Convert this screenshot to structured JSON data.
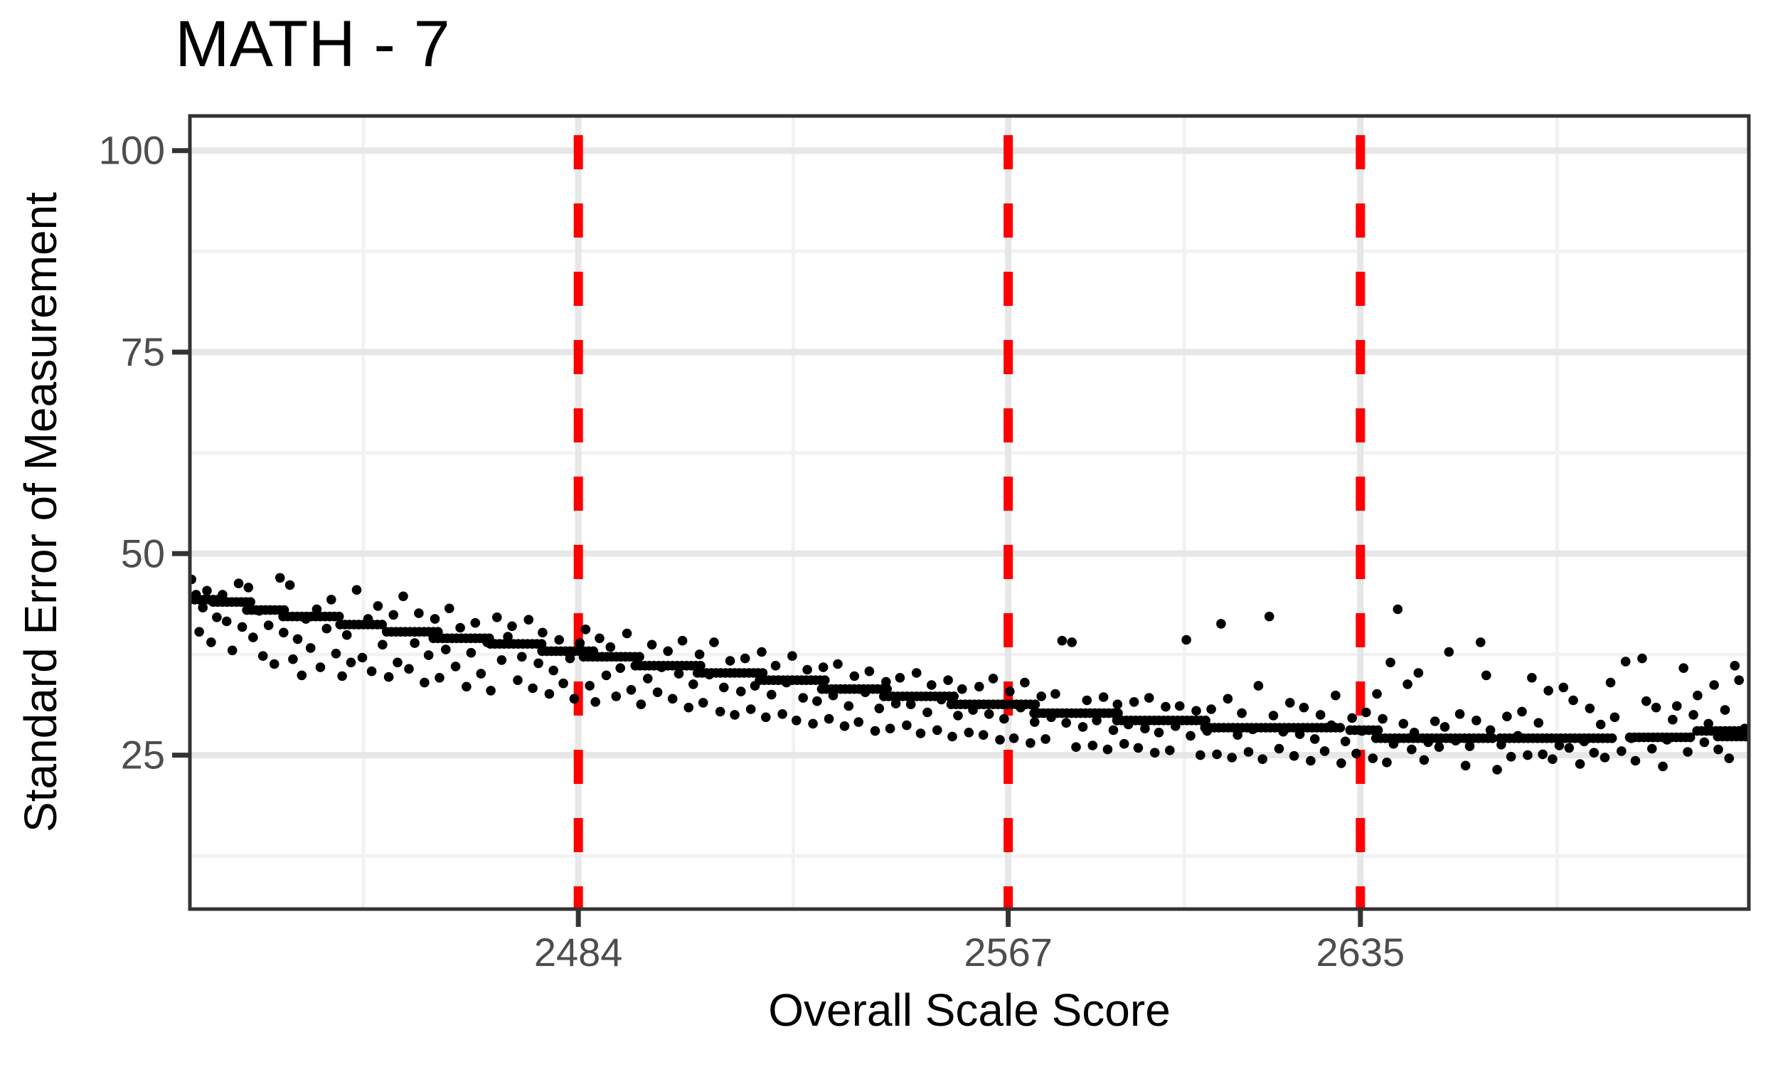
{
  "chart_data": {
    "type": "scatter",
    "title": "MATH - 7",
    "xlabel": "Overall Scale Score",
    "ylabel": "Standard Error of Measurement",
    "xlim": [
      2409,
      2710
    ],
    "ylim": [
      5.9,
      104.3
    ],
    "x_ticks": [
      2484,
      2567,
      2635
    ],
    "x_minor_breaks": [
      2442.5,
      2525.5,
      2601,
      2673
    ],
    "y_ticks": [
      25,
      50,
      75,
      100
    ],
    "y_minor_breaks": [
      12.5,
      37.5,
      62.5,
      87.5
    ],
    "grid": "major+minor",
    "legend": "none",
    "cut_lines": {
      "x": [
        2484,
        2567,
        2635
      ],
      "color": "#FF0000",
      "linetype": "dashed"
    },
    "point_color": "#000000",
    "run_step": 0.9,
    "dense_runs": [
      [
        2409,
        2415,
        44.3
      ],
      [
        2413.5,
        2421,
        44.0
      ],
      [
        2420,
        2428,
        43.0
      ],
      [
        2427,
        2438,
        42.2
      ],
      [
        2438,
        2447,
        41.2
      ],
      [
        2447,
        2457,
        40.3
      ],
      [
        2456,
        2467,
        39.5
      ],
      [
        2467,
        2477,
        38.8
      ],
      [
        2477,
        2487,
        37.9
      ],
      [
        2485,
        2496,
        37.2
      ],
      [
        2495,
        2508,
        36.1
      ],
      [
        2507,
        2520,
        35.2
      ],
      [
        2519,
        2532,
        34.3
      ],
      [
        2531,
        2544,
        33.2
      ],
      [
        2543,
        2557,
        32.3
      ],
      [
        2556,
        2573,
        31.3
      ],
      [
        2572,
        2589,
        30.2
      ],
      [
        2588,
        2606,
        29.3
      ],
      [
        2605,
        2632,
        28.4
      ],
      [
        2633,
        2638.5,
        28.1
      ],
      [
        2638,
        2661,
        27.1
      ],
      [
        2662,
        2684,
        27.1
      ],
      [
        2687,
        2699,
        27.2
      ],
      [
        2700,
        2710,
        28.0
      ],
      [
        2704,
        2710,
        27.3
      ]
    ],
    "points": [
      [
        2409.3,
        46.8
      ],
      [
        2410.2,
        44.9
      ],
      [
        2410.8,
        40.3
      ],
      [
        2411.5,
        43.3
      ],
      [
        2412.3,
        45.4
      ],
      [
        2413.1,
        39.0
      ],
      [
        2414.2,
        42.1
      ],
      [
        2415.3,
        44.9
      ],
      [
        2416.1,
        41.6
      ],
      [
        2417.2,
        38.0
      ],
      [
        2418.4,
        46.3
      ],
      [
        2419.1,
        40.9
      ],
      [
        2420.3,
        45.8
      ],
      [
        2421.2,
        39.6
      ],
      [
        2422.4,
        42.9
      ],
      [
        2423.1,
        37.3
      ],
      [
        2424.2,
        41.1
      ],
      [
        2425.3,
        36.3
      ],
      [
        2426.4,
        47.0
      ],
      [
        2427.1,
        40.2
      ],
      [
        2428.3,
        46.1
      ],
      [
        2428.9,
        36.9
      ],
      [
        2429.8,
        39.4
      ],
      [
        2430.6,
        34.9
      ],
      [
        2431.4,
        41.9
      ],
      [
        2432.3,
        38.3
      ],
      [
        2433.5,
        43.1
      ],
      [
        2434.2,
        35.9
      ],
      [
        2435.4,
        40.7
      ],
      [
        2436.3,
        44.3
      ],
      [
        2437.2,
        37.6
      ],
      [
        2438.4,
        34.8
      ],
      [
        2439.3,
        39.9
      ],
      [
        2440.1,
        36.5
      ],
      [
        2441.2,
        45.5
      ],
      [
        2442.3,
        37.1
      ],
      [
        2443.4,
        41.9
      ],
      [
        2444.1,
        35.4
      ],
      [
        2445.3,
        43.5
      ],
      [
        2446.2,
        38.7
      ],
      [
        2447.4,
        34.7
      ],
      [
        2448.3,
        42.4
      ],
      [
        2449.1,
        36.5
      ],
      [
        2450.2,
        44.7
      ],
      [
        2451.3,
        35.7
      ],
      [
        2452.4,
        38.9
      ],
      [
        2453.2,
        42.6
      ],
      [
        2454.3,
        34.0
      ],
      [
        2455.1,
        37.4
      ],
      [
        2456.3,
        41.9
      ],
      [
        2457.2,
        34.6
      ],
      [
        2458.4,
        38.1
      ],
      [
        2459.1,
        43.2
      ],
      [
        2460.3,
        36.0
      ],
      [
        2461.2,
        40.8
      ],
      [
        2462.4,
        33.5
      ],
      [
        2463.3,
        37.7
      ],
      [
        2464.1,
        41.4
      ],
      [
        2465.2,
        35.1
      ],
      [
        2466.4,
        39.0
      ],
      [
        2467.1,
        33.0
      ],
      [
        2468.3,
        42.1
      ],
      [
        2469.2,
        36.8
      ],
      [
        2470.4,
        39.7
      ],
      [
        2471.2,
        41.0
      ],
      [
        2472.3,
        34.3
      ],
      [
        2473.1,
        37.2
      ],
      [
        2474.4,
        41.8
      ],
      [
        2475.2,
        33.3
      ],
      [
        2476.3,
        36.4
      ],
      [
        2477.1,
        40.2
      ],
      [
        2478.4,
        32.6
      ],
      [
        2479.2,
        35.5
      ],
      [
        2480.3,
        39.3
      ],
      [
        2481.1,
        33.9
      ],
      [
        2482.4,
        37.0
      ],
      [
        2483.2,
        32.0
      ],
      [
        2484.3,
        38.9
      ],
      [
        2485.4,
        40.6
      ],
      [
        2486.2,
        33.6
      ],
      [
        2487.3,
        31.6
      ],
      [
        2488.1,
        39.5
      ],
      [
        2489.4,
        34.9
      ],
      [
        2490.2,
        38.4
      ],
      [
        2491.3,
        32.3
      ],
      [
        2492.1,
        35.8
      ],
      [
        2493.4,
        40.1
      ],
      [
        2494.2,
        33.1
      ],
      [
        2495.3,
        36.9
      ],
      [
        2496.1,
        31.3
      ],
      [
        2497.4,
        34.5
      ],
      [
        2498.2,
        38.7
      ],
      [
        2499.3,
        32.8
      ],
      [
        2500.1,
        35.9
      ],
      [
        2501.3,
        37.9
      ],
      [
        2502.2,
        32.0
      ],
      [
        2503.4,
        35.1
      ],
      [
        2504.1,
        39.2
      ],
      [
        2505.3,
        30.9
      ],
      [
        2506.2,
        33.8
      ],
      [
        2507.4,
        37.5
      ],
      [
        2508.1,
        31.5
      ],
      [
        2509.3,
        35.0
      ],
      [
        2510.2,
        39.0
      ],
      [
        2511.4,
        30.4
      ],
      [
        2512.1,
        33.4
      ],
      [
        2513.3,
        36.7
      ],
      [
        2514.2,
        30.0
      ],
      [
        2515.4,
        32.9
      ],
      [
        2516.2,
        37.0
      ],
      [
        2517.3,
        30.7
      ],
      [
        2518.1,
        33.6
      ],
      [
        2519.4,
        37.8
      ],
      [
        2520.2,
        29.7
      ],
      [
        2521.3,
        32.5
      ],
      [
        2522.1,
        36.1
      ],
      [
        2523.4,
        30.1
      ],
      [
        2524.2,
        34.0
      ],
      [
        2525.3,
        37.3
      ],
      [
        2526.1,
        29.3
      ],
      [
        2527.4,
        32.1
      ],
      [
        2528.2,
        35.6
      ],
      [
        2529.3,
        28.9
      ],
      [
        2530.1,
        31.7
      ],
      [
        2531.3,
        35.9
      ],
      [
        2532.4,
        29.5
      ],
      [
        2533.2,
        32.4
      ],
      [
        2534.1,
        36.3
      ],
      [
        2535.4,
        28.6
      ],
      [
        2536.2,
        31.1
      ],
      [
        2537.3,
        34.8
      ],
      [
        2538.1,
        29.1
      ],
      [
        2539.4,
        32.8
      ],
      [
        2540.2,
        35.4
      ],
      [
        2541.3,
        28.0
      ],
      [
        2542.1,
        30.8
      ],
      [
        2543.4,
        34.1
      ],
      [
        2544.2,
        28.3
      ],
      [
        2545.3,
        31.4
      ],
      [
        2546.1,
        34.6
      ],
      [
        2547.4,
        28.7
      ],
      [
        2548.2,
        31.3
      ],
      [
        2549.3,
        35.2
      ],
      [
        2550.1,
        27.7
      ],
      [
        2551.4,
        30.3
      ],
      [
        2552.2,
        33.7
      ],
      [
        2553.3,
        28.1
      ],
      [
        2554.1,
        31.9
      ],
      [
        2555.4,
        34.3
      ],
      [
        2556.2,
        27.3
      ],
      [
        2557.3,
        29.9
      ],
      [
        2558.1,
        33.2
      ],
      [
        2559.4,
        27.8
      ],
      [
        2560.2,
        30.6
      ],
      [
        2561.4,
        33.5
      ],
      [
        2562.2,
        27.5
      ],
      [
        2563.3,
        30.1
      ],
      [
        2564.1,
        34.5
      ],
      [
        2565.4,
        26.9
      ],
      [
        2566.2,
        29.5
      ],
      [
        2567.3,
        32.9
      ],
      [
        2568.1,
        27.1
      ],
      [
        2569.4,
        30.9
      ],
      [
        2570.2,
        34.0
      ],
      [
        2571.3,
        26.5
      ],
      [
        2572.1,
        29.1
      ],
      [
        2573.4,
        32.3
      ],
      [
        2574.2,
        27.0
      ],
      [
        2575.3,
        29.7
      ],
      [
        2576.1,
        32.6
      ],
      [
        2577.4,
        39.2
      ],
      [
        2578.2,
        29.0
      ],
      [
        2579.3,
        39.0
      ],
      [
        2580.1,
        26.0
      ],
      [
        2581.4,
        28.5
      ],
      [
        2582.2,
        31.8
      ],
      [
        2583.3,
        26.2
      ],
      [
        2584.1,
        29.3
      ],
      [
        2585.4,
        32.2
      ],
      [
        2586.2,
        25.7
      ],
      [
        2587.3,
        28.1
      ],
      [
        2588.1,
        31.3
      ],
      [
        2589.4,
        26.4
      ],
      [
        2590.2,
        28.8
      ],
      [
        2591.3,
        31.6
      ],
      [
        2592.1,
        25.9
      ],
      [
        2593.4,
        28.3
      ],
      [
        2594.2,
        32.1
      ],
      [
        2595.3,
        25.3
      ],
      [
        2596.1,
        27.8
      ],
      [
        2597.4,
        31.0
      ],
      [
        2598.2,
        25.6
      ],
      [
        2599.3,
        28.6
      ],
      [
        2600.1,
        31.1
      ],
      [
        2601.4,
        39.3
      ],
      [
        2602.2,
        27.4
      ],
      [
        2603.3,
        30.5
      ],
      [
        2604.1,
        25.0
      ],
      [
        2605.4,
        28.0
      ],
      [
        2606.2,
        30.7
      ],
      [
        2607.3,
        25.1
      ],
      [
        2608.1,
        41.3
      ],
      [
        2609.4,
        32.0
      ],
      [
        2610.2,
        24.7
      ],
      [
        2611.3,
        27.5
      ],
      [
        2612.1,
        30.2
      ],
      [
        2613.4,
        25.4
      ],
      [
        2614.2,
        28.2
      ],
      [
        2615.3,
        33.6
      ],
      [
        2616.1,
        24.5
      ],
      [
        2617.4,
        42.2
      ],
      [
        2618.2,
        29.9
      ],
      [
        2619.3,
        25.8
      ],
      [
        2620.1,
        27.9
      ],
      [
        2621.4,
        31.5
      ],
      [
        2622.2,
        24.9
      ],
      [
        2623.3,
        27.6
      ],
      [
        2624.1,
        30.9
      ],
      [
        2625.4,
        24.3
      ],
      [
        2626.2,
        27.0
      ],
      [
        2627.3,
        30.0
      ],
      [
        2628.1,
        25.5
      ],
      [
        2629.4,
        28.7
      ],
      [
        2630.2,
        32.4
      ],
      [
        2631.3,
        24.0
      ],
      [
        2632.1,
        26.7
      ],
      [
        2633.4,
        29.6
      ],
      [
        2634.2,
        25.2
      ],
      [
        2635.3,
        28.0
      ],
      [
        2636.1,
        30.3
      ],
      [
        2637.4,
        24.6
      ],
      [
        2638.2,
        32.6
      ],
      [
        2639.3,
        29.5
      ],
      [
        2640.1,
        24.1
      ],
      [
        2640.8,
        36.5
      ],
      [
        2641.4,
        26.4
      ],
      [
        2642.2,
        43.1
      ],
      [
        2643.3,
        28.9
      ],
      [
        2644.1,
        33.8
      ],
      [
        2644.9,
        25.7
      ],
      [
        2645.4,
        27.8
      ],
      [
        2646.2,
        35.2
      ],
      [
        2647.3,
        24.4
      ],
      [
        2648.1,
        26.6
      ],
      [
        2649.4,
        29.2
      ],
      [
        2650.2,
        26.0
      ],
      [
        2651.3,
        28.5
      ],
      [
        2652.1,
        37.8
      ],
      [
        2653.4,
        26.8
      ],
      [
        2654.2,
        30.1
      ],
      [
        2655.3,
        23.7
      ],
      [
        2656.1,
        26.1
      ],
      [
        2657.4,
        29.3
      ],
      [
        2658.2,
        39.0
      ],
      [
        2659.3,
        34.9
      ],
      [
        2660.1,
        28.1
      ],
      [
        2661.4,
        23.2
      ],
      [
        2662.2,
        26.3
      ],
      [
        2663.3,
        29.8
      ],
      [
        2664.1,
        24.8
      ],
      [
        2665.4,
        27.4
      ],
      [
        2666.2,
        30.4
      ],
      [
        2667.3,
        25.0
      ],
      [
        2668.1,
        34.6
      ],
      [
        2669.4,
        29.0
      ],
      [
        2670.2,
        25.1
      ],
      [
        2671.3,
        33.0
      ],
      [
        2672.1,
        24.5
      ],
      [
        2673.4,
        26.2
      ],
      [
        2674.2,
        33.4
      ],
      [
        2675.3,
        25.9
      ],
      [
        2676.1,
        31.8
      ],
      [
        2677.4,
        23.9
      ],
      [
        2678.2,
        26.7
      ],
      [
        2679.3,
        30.8
      ],
      [
        2680.1,
        25.3
      ],
      [
        2681.4,
        28.8
      ],
      [
        2682.2,
        24.7
      ],
      [
        2683.3,
        34.0
      ],
      [
        2684.1,
        29.7
      ],
      [
        2685.4,
        25.5
      ],
      [
        2686.2,
        36.6
      ],
      [
        2687.3,
        27.1
      ],
      [
        2688.1,
        24.3
      ],
      [
        2689.4,
        37.0
      ],
      [
        2690.2,
        31.7
      ],
      [
        2691.3,
        25.8
      ],
      [
        2692.1,
        30.9
      ],
      [
        2693.4,
        23.6
      ],
      [
        2694.2,
        26.9
      ],
      [
        2695.3,
        29.4
      ],
      [
        2696.1,
        31.1
      ],
      [
        2697.4,
        35.8
      ],
      [
        2698.2,
        25.4
      ],
      [
        2699.3,
        30.0
      ],
      [
        2700.1,
        32.4
      ],
      [
        2701.4,
        26.6
      ],
      [
        2702.2,
        28.9
      ],
      [
        2703.3,
        33.7
      ],
      [
        2704.1,
        25.7
      ],
      [
        2705.4,
        30.6
      ],
      [
        2706.2,
        24.6
      ],
      [
        2707.3,
        36.1
      ],
      [
        2708.1,
        34.3
      ],
      [
        2709.2,
        28.3
      ]
    ]
  },
  "style": {
    "red": "#FF0000",
    "grid_major": "#e7e7e7",
    "grid_minor": "#f2f2f2",
    "panel_border": "#333333",
    "tick_mark": "#333333",
    "tick_label": "#4d4d4d",
    "text": "#000000",
    "background": "#ffffff"
  }
}
